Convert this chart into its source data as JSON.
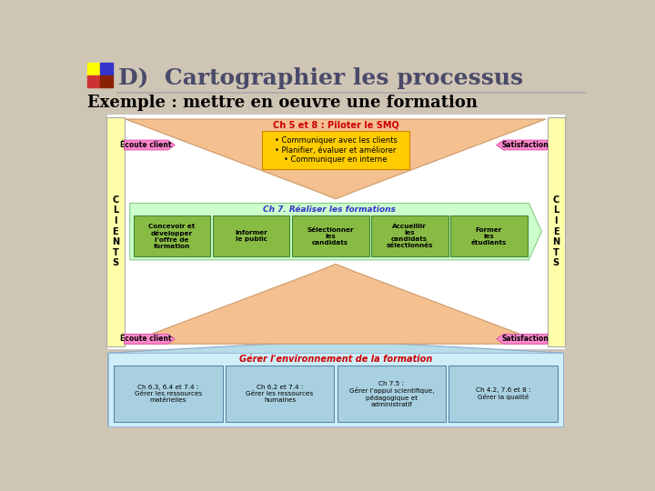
{
  "bg_color": "#cfc5b4",
  "diagram_bg": "#ffffff",
  "title": "D)  Cartographier les processus",
  "subtitle": "Exemple : mettre en oeuvre une formation",
  "title_color": "#4a4a6a",
  "subtitle_color": "#000000",
  "square_colors": [
    "#ffff00",
    "#3333cc",
    "#cc3333",
    "#882200"
  ],
  "clients_box_color": "#ffffaa",
  "smq_bg_color": "#f5c090",
  "smq_label_color": "#cc0000",
  "smq_label": "Ch 5 et 8 : Piloter le SMQ",
  "smq_box_color": "#ffcc00",
  "smq_box_text": "• Communiquer avec les clients\n• Planifier, évaluer et améliorer\n• Communiquer en interne",
  "smq_box_text_color": "#000000",
  "arrow_color": "#ff88cc",
  "arrow_label_ecoute": "Écoute client",
  "arrow_label_satisfaction": "Satisfaction",
  "realiser_bg_color": "#ccffcc",
  "realiser_label": "Ch 7. Réaliser les formations",
  "realiser_label_color": "#3333cc",
  "realiser_box_color": "#88bb44",
  "realiser_boxes": [
    "Concevoir et\ndévelopper\nl'offre de\nformation",
    "Informer\nle public",
    "Sélectionner\nles\ncandidats",
    "Accueillir\nles\ncandidats\nsélectionnés",
    "Former\nles\nétudiants"
  ],
  "realiser_box_text_color": "#000000",
  "env_bg_color": "#b8dce8",
  "env_label": "Gérer l'environnement de la formation",
  "env_label_color": "#cc0000",
  "env_inner_color": "#d0eef8",
  "env_box_color": "#a8d0e0",
  "env_boxes": [
    "Ch 6.3, 6.4 et 7.4 :\nGérer les ressources\nmatérielles",
    "Ch 6.2 et 7.4 :\nGérer les ressources\nhumaines",
    "Ch 7.5 :\nGérer l'appui scientifique,\npédagogique et\nadministratif",
    "Ch 4.2, 7.6 et 8 :\nGérer la qualité"
  ],
  "env_box_text_color": "#000000"
}
